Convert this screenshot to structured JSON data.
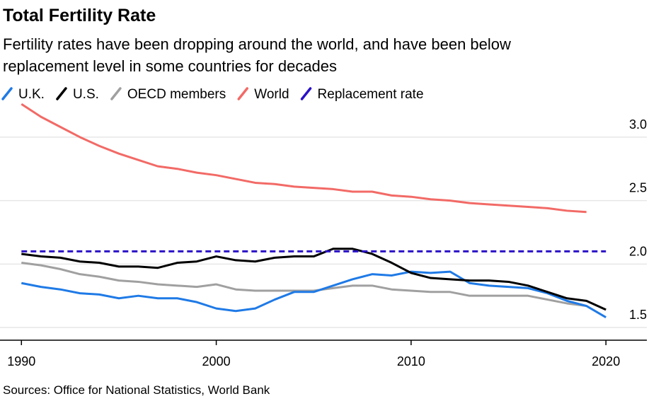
{
  "chart_data": {
    "type": "line",
    "title": "Total Fertility Rate",
    "subtitle": [
      "Fertility rates have been dropping around the world, and have been below",
      "replacement level in some countries for decades"
    ],
    "source": "Sources: Office for National Statistics, World Bank",
    "x": [
      1990,
      1991,
      1992,
      1993,
      1994,
      1995,
      1996,
      1997,
      1998,
      1999,
      2000,
      2001,
      2002,
      2003,
      2004,
      2005,
      2006,
      2007,
      2008,
      2009,
      2010,
      2011,
      2012,
      2013,
      2014,
      2015,
      2016,
      2017,
      2018,
      2019,
      2020
    ],
    "series": [
      {
        "name": "U.K.",
        "color": "#1f7ae6",
        "values": [
          1.85,
          1.82,
          1.8,
          1.77,
          1.76,
          1.73,
          1.75,
          1.73,
          1.73,
          1.7,
          1.65,
          1.63,
          1.65,
          1.72,
          1.78,
          1.78,
          1.83,
          1.88,
          1.92,
          1.91,
          1.94,
          1.93,
          1.94,
          1.85,
          1.83,
          1.82,
          1.81,
          1.77,
          1.71,
          1.67,
          1.58
        ]
      },
      {
        "name": "U.S.",
        "color": "#000000",
        "values": [
          2.08,
          2.06,
          2.05,
          2.02,
          2.01,
          1.98,
          1.98,
          1.97,
          2.01,
          2.02,
          2.06,
          2.03,
          2.02,
          2.05,
          2.06,
          2.06,
          2.12,
          2.12,
          2.08,
          2.01,
          1.93,
          1.89,
          1.88,
          1.87,
          1.87,
          1.86,
          1.83,
          1.78,
          1.73,
          1.71,
          1.64
        ]
      },
      {
        "name": "OECD members",
        "color": "#a0a0a0",
        "values": [
          2.01,
          1.99,
          1.96,
          1.92,
          1.9,
          1.87,
          1.86,
          1.84,
          1.83,
          1.82,
          1.84,
          1.8,
          1.79,
          1.79,
          1.79,
          1.79,
          1.81,
          1.83,
          1.83,
          1.8,
          1.79,
          1.78,
          1.78,
          1.75,
          1.75,
          1.75,
          1.75,
          1.72,
          1.69,
          1.67,
          null
        ]
      },
      {
        "name": "World",
        "color": "#f26a66",
        "values": [
          3.26,
          3.16,
          3.08,
          3.0,
          2.93,
          2.87,
          2.82,
          2.77,
          2.75,
          2.72,
          2.7,
          2.67,
          2.64,
          2.63,
          2.61,
          2.6,
          2.59,
          2.57,
          2.57,
          2.54,
          2.53,
          2.51,
          2.5,
          2.48,
          2.47,
          2.46,
          2.45,
          2.44,
          2.42,
          2.41,
          null
        ]
      },
      {
        "name": "Replacement rate",
        "color": "#2a12c8",
        "dashed": true,
        "values": [
          2.1,
          2.1,
          2.1,
          2.1,
          2.1,
          2.1,
          2.1,
          2.1,
          2.1,
          2.1,
          2.1,
          2.1,
          2.1,
          2.1,
          2.1,
          2.1,
          2.1,
          2.1,
          2.1,
          2.1,
          2.1,
          2.1,
          2.1,
          2.1,
          2.1,
          2.1,
          2.1,
          2.1,
          2.1,
          2.1,
          2.1
        ]
      }
    ],
    "xlim": [
      1988.9,
      2022.1
    ],
    "xticks": [
      1990,
      2000,
      2010,
      2020
    ],
    "ylim": [
      1.4,
      3.3
    ],
    "yticks": [
      1.5,
      {
        "value": 2.0,
        "label": "2.0"
      },
      2.5,
      {
        "value": 3.0,
        "label": "3.0"
      }
    ],
    "grid": true,
    "legend": "top"
  }
}
